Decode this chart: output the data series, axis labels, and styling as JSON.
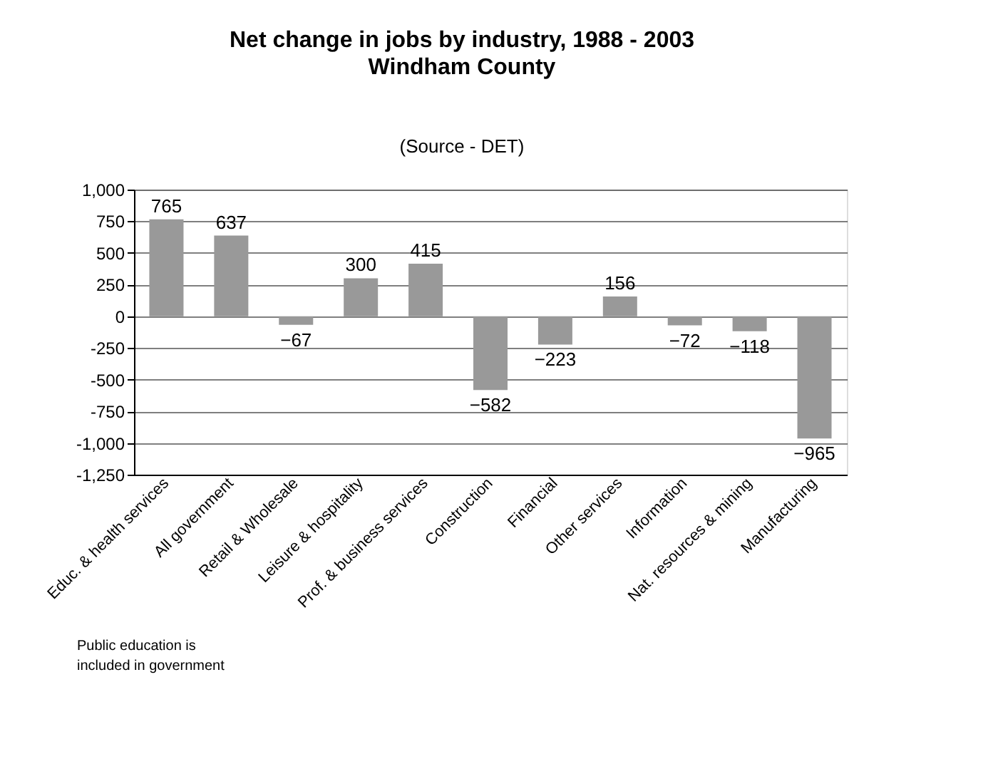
{
  "chart_data": {
    "type": "bar",
    "title": "Net change in jobs by industry, 1988 - 2003",
    "subtitle": "Windham County",
    "annotations": [
      "(Source - DET)",
      "Public education is included in government"
    ],
    "categories": [
      "Educ. & health services",
      "All government",
      "Retail & Wholesale",
      "Leisure & hospitality",
      "Prof. & business services",
      "Construction",
      "Financial",
      "Other services",
      "Information",
      "Nat. resources & mining",
      "Manufacturing"
    ],
    "values": [
      765,
      637,
      -67,
      300,
      415,
      -582,
      -223,
      156,
      -72,
      -118,
      -965
    ],
    "color": "#999999",
    "ylim": [
      -1250,
      1000
    ],
    "yticks": [
      {
        "value": 1000,
        "label": "1,000"
      },
      750,
      500,
      250,
      0,
      -250,
      -500,
      -750,
      {
        "value": -1000,
        "label": "-1,000"
      },
      {
        "value": -1250,
        "label": "-1,250"
      }
    ],
    "grid": "y",
    "data_labels": true
  }
}
